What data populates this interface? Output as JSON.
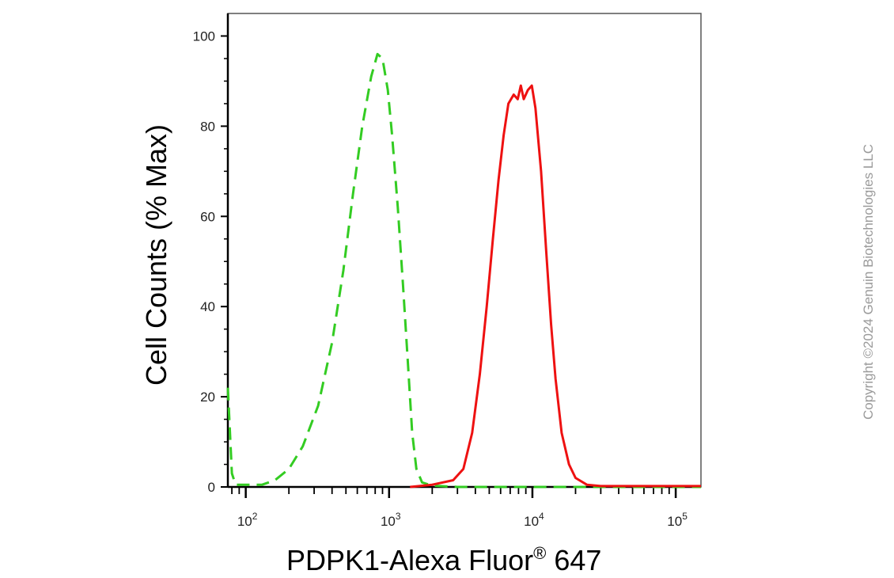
{
  "chart_data": {
    "type": "line",
    "title": "",
    "xlabel": "PDPK1-Alexa Fluor",
    "xlabel_superscript": "®",
    "xlabel_suffix": " 647",
    "ylabel": "Cell Counts (% Max)",
    "xscale": "log",
    "xlim": [
      75,
      150000
    ],
    "ylim": [
      0,
      105
    ],
    "y_ticks": [
      0,
      20,
      40,
      60,
      80,
      100
    ],
    "x_ticks": [
      {
        "value": 100,
        "base": "10",
        "exp": "2"
      },
      {
        "value": 1000,
        "base": "10",
        "exp": "3"
      },
      {
        "value": 10000,
        "base": "10",
        "exp": "4"
      },
      {
        "value": 100000,
        "base": "10",
        "exp": "5"
      }
    ],
    "grid": false,
    "series": [
      {
        "style": "dashed",
        "color": "#33cc22",
        "points": [
          [
            75,
            22
          ],
          [
            80,
            3
          ],
          [
            85,
            0.5
          ],
          [
            100,
            0.5
          ],
          [
            130,
            0.5
          ],
          [
            160,
            1.5
          ],
          [
            200,
            4
          ],
          [
            250,
            9
          ],
          [
            320,
            18
          ],
          [
            400,
            32
          ],
          [
            480,
            48
          ],
          [
            560,
            65
          ],
          [
            650,
            80
          ],
          [
            750,
            91
          ],
          [
            830,
            96
          ],
          [
            900,
            95
          ],
          [
            980,
            88
          ],
          [
            1050,
            78
          ],
          [
            1150,
            62
          ],
          [
            1250,
            45
          ],
          [
            1350,
            28
          ],
          [
            1450,
            12
          ],
          [
            1550,
            4
          ],
          [
            1700,
            1
          ],
          [
            2000,
            0.3
          ],
          [
            3000,
            0
          ],
          [
            10000,
            0
          ],
          [
            150000,
            0
          ]
        ]
      },
      {
        "style": "solid",
        "color": "#ee1111",
        "points": [
          [
            1400,
            0
          ],
          [
            2000,
            0.5
          ],
          [
            2800,
            1.5
          ],
          [
            3300,
            4
          ],
          [
            3800,
            12
          ],
          [
            4300,
            25
          ],
          [
            4800,
            40
          ],
          [
            5300,
            55
          ],
          [
            5800,
            68
          ],
          [
            6300,
            78
          ],
          [
            6800,
            85
          ],
          [
            7400,
            87
          ],
          [
            7900,
            86
          ],
          [
            8300,
            89
          ],
          [
            8700,
            86
          ],
          [
            9300,
            88
          ],
          [
            9900,
            89
          ],
          [
            10500,
            84
          ],
          [
            11500,
            70
          ],
          [
            12500,
            52
          ],
          [
            13500,
            36
          ],
          [
            14500,
            24
          ],
          [
            16000,
            12
          ],
          [
            18000,
            5
          ],
          [
            20000,
            2
          ],
          [
            24000,
            0.5
          ],
          [
            30000,
            0.2
          ],
          [
            150000,
            0.2
          ]
        ]
      }
    ]
  },
  "copyright": "Copyright ©2024 Genuin Biotechnologies LLC"
}
